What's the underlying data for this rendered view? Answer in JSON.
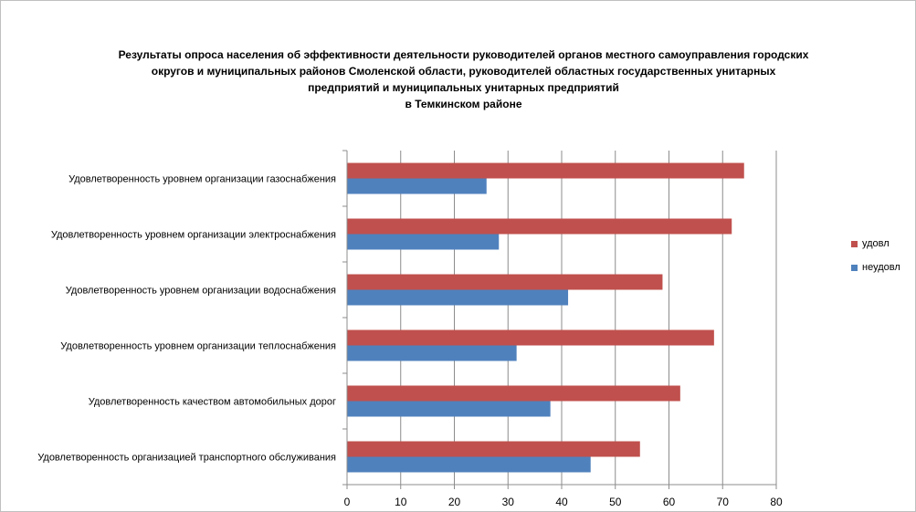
{
  "title_lines": [
    "Результаты опроса населения об эффективности деятельности руководителей органов местного самоуправления городских",
    "округов и муниципальных районов Смоленской области, руководителей областных государственных унитарных",
    "предприятий и муниципальных унитарных предприятий",
    "в Темкинском районе"
  ],
  "chart_data": {
    "type": "bar",
    "orientation": "horizontal",
    "categories": [
      "Удовлетворенность  уровнем  организации газоснабжения",
      "Удовлетворенность  уровнем организации электроснабжения",
      "Удовлетворенность  уровнем  организации водоснабжения",
      "Удовлетворенность  уровнем  организации теплоснабжения",
      "Удовлетворенность  качеством  автомобильных дорог",
      "Удовлетворенность  организацией транспортного обслуживания"
    ],
    "series": [
      {
        "name": "удовл",
        "color": "#c0504d",
        "values": [
          74,
          71.7,
          58.8,
          68.4,
          62.1,
          54.6
        ]
      },
      {
        "name": "неудовл",
        "color": "#4f81bd",
        "values": [
          26,
          28.3,
          41.2,
          31.6,
          37.9,
          45.4
        ]
      }
    ],
    "xlim": [
      0,
      80
    ],
    "x_ticks": [
      0,
      10,
      20,
      30,
      40,
      50,
      60,
      70,
      80
    ],
    "grid": true,
    "legend_position": "right"
  }
}
